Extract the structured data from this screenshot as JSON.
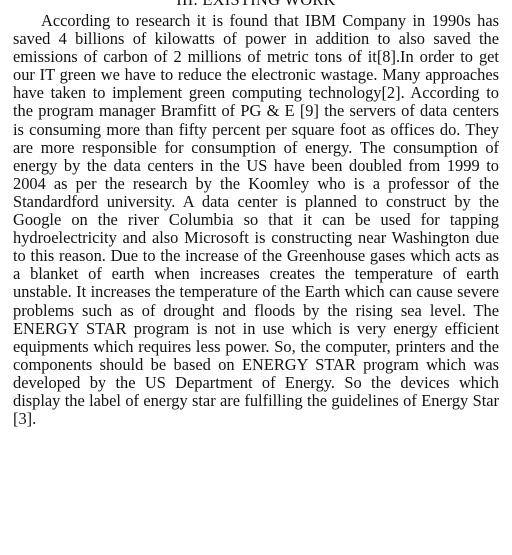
{
  "section": {
    "heading": "III. EXISTING WORK"
  },
  "paragraph": {
    "text": "According to research it is found that IBM Company in 1990s has saved 4 billions of kilowatts of power in addition to also saved the emissions of carbon of 2 millions of metric tons of it[8].In order to get our IT green we have to reduce the electronic wastage. Many approaches have taken to implement green computing technology[2]. According to the program manager Bramfitt of PG & E [9] the servers of data centers is consuming more than fifty percent per square foot as offices do. They are more responsible for consumption of energy. The consumption of energy by the data centers in the US have been doubled from 1999 to 2004 as per the research by the Koomley who is a professor of the Standardford university. A data center is planned to construct by the Google on the river Columbia so that it can be used for tapping hydroelectricity and also Microsoft is constructing near Washington due to this reason. Due to the increase of the Greenhouse gases which acts as a blanket of earth when increases creates the temperature of earth unstable. It increases the temperature of the Earth which can cause severe problems such as of drought and floods by the rising sea level. The ENERGY STAR program is not in use which is very energy efficient equipments which requires less power. So, the computer, printers and the components should be based on ENERGY STAR program which was developed by the US Department of Energy. So the devices which display the label of energy star are fulfilling the guidelines of Energy Star [3]."
  }
}
